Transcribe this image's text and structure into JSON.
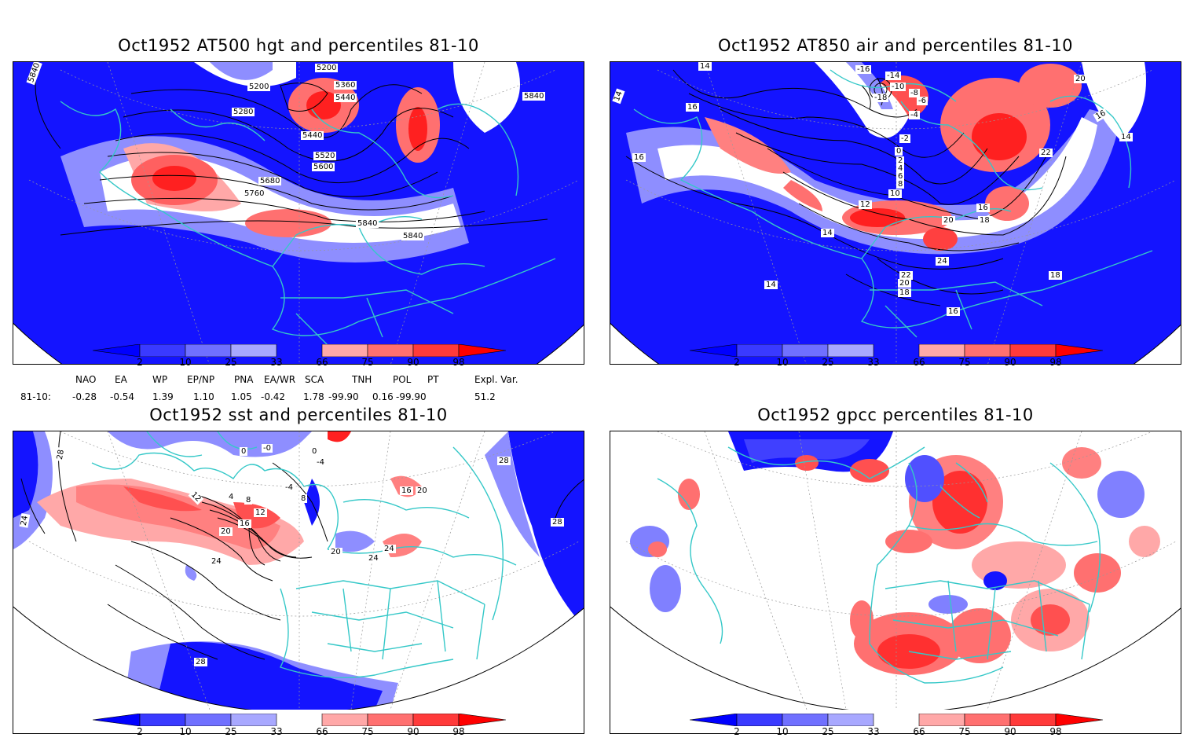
{
  "panels": [
    {
      "id": "hgt500",
      "title": "Oct1952 AT500 hgt and percentiles 81-10",
      "contour_labels": [
        "5840",
        "5200",
        "5200",
        "5360",
        "5440",
        "5280",
        "5440",
        "5520",
        "5600",
        "5680",
        "5760",
        "5840",
        "5840",
        "5840"
      ]
    },
    {
      "id": "air850",
      "title": "Oct1952 AT850 air and percentiles 81-10",
      "contour_labels": [
        "14",
        "14",
        "16",
        "16",
        "-16",
        "-14",
        "-10",
        "-18",
        "-8",
        "-6",
        "-4",
        "-2",
        "0",
        "2",
        "4",
        "6",
        "8",
        "10",
        "12",
        "14",
        "16",
        "18",
        "20",
        "22",
        "24",
        "22",
        "20",
        "18",
        "20",
        "16",
        "14",
        "18",
        "16",
        "14",
        "18"
      ]
    },
    {
      "id": "sst",
      "title": "Oct1952 sst and percentiles 81-10",
      "contour_labels": [
        "28",
        "24",
        "0",
        "-0",
        "0",
        "-4",
        "-4",
        "8",
        "12",
        "4",
        "8",
        "12",
        "16",
        "20",
        "24",
        "20",
        "24",
        "24",
        "20",
        "16",
        "28",
        "28",
        "28"
      ]
    },
    {
      "id": "gpcc",
      "title": "Oct1952 gpcc percentiles 81-10",
      "contour_labels": []
    }
  ],
  "colorbar": {
    "labels": [
      "2",
      "10",
      "25",
      "33",
      "66",
      "75",
      "90",
      "98"
    ],
    "colors": [
      "#ff0000",
      "#ff3a3a",
      "#ff7070",
      "#ffa8a8",
      "#a8a8ff",
      "#7070ff",
      "#3a3aff",
      "#0000ff"
    ]
  },
  "teleconnections": {
    "headers": [
      "NAO",
      "EA",
      "WP",
      "EP/NP",
      "PNA",
      "EA/WR",
      "SCA",
      "TNH",
      "POL",
      "PT",
      "Expl. Var."
    ],
    "row_label": "81-10:",
    "values": [
      "-0.28",
      "-0.54",
      "1.39",
      "1.10",
      "1.05",
      "-0.42",
      "1.78",
      "-99.90",
      "0.16",
      "-99.90",
      "51.2"
    ]
  }
}
